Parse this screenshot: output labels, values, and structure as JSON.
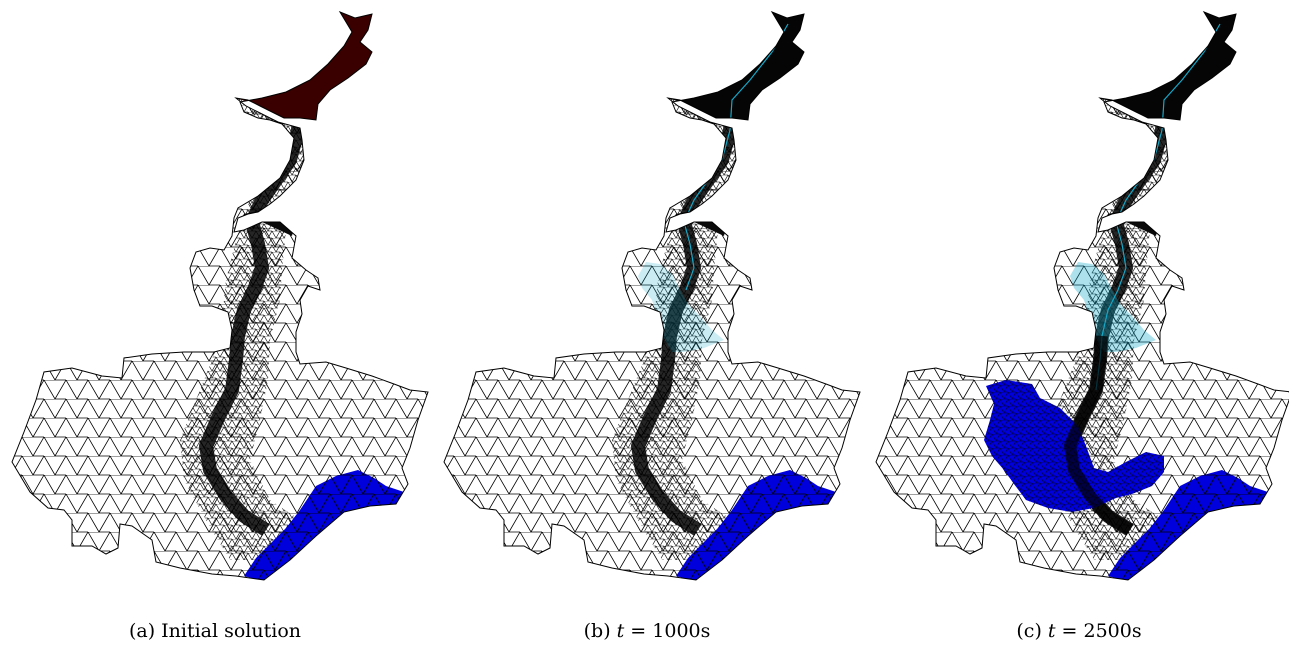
{
  "figure": {
    "panels": [
      {
        "label": "(a)",
        "caption_text": "Initial solution",
        "caption_math": "",
        "caption_rest": ""
      },
      {
        "label": "(b)",
        "caption_text": "",
        "caption_math": "t",
        "caption_rest": " = 1000s"
      },
      {
        "label": "(c)",
        "caption_text": "",
        "caption_math": "t",
        "caption_rest": " = 2500s"
      }
    ]
  },
  "colors": {
    "mesh": "#000000",
    "flood": "#0000dd",
    "dry_tint": "#3a0000",
    "wet_tint": "#14a8c8"
  }
}
